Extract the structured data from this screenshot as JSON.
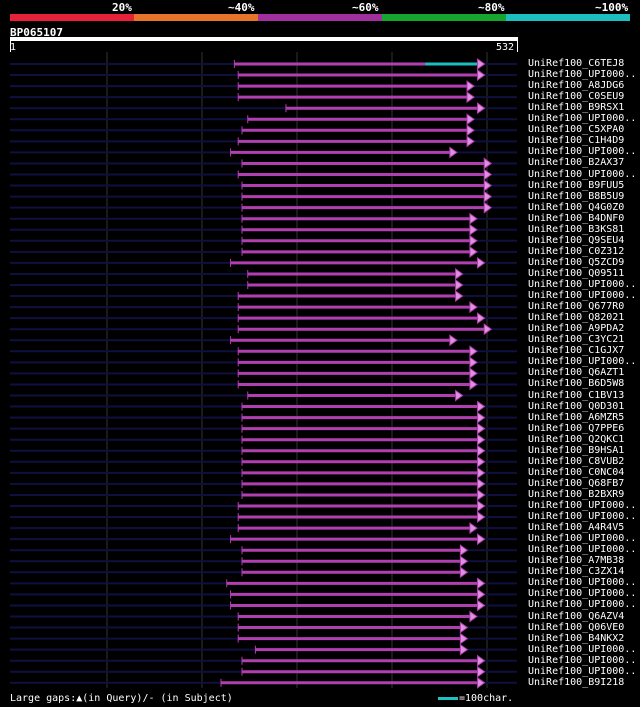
{
  "legend": {
    "labels": [
      "20%",
      "~40%",
      "~60%",
      "~80%",
      "~100%"
    ],
    "colors": [
      "#e8213a",
      "#e8742a",
      "#a0309e",
      "#16a52e",
      "#1cbfc0"
    ]
  },
  "query": {
    "id": "BP065107",
    "start": "1",
    "end": "532",
    "length": 532
  },
  "colors": {
    "hit": "#b23fb2",
    "hit_high": "#1cbfc0",
    "background_line": "#101040",
    "grid": "#333333",
    "gap_marker": "#ffff88"
  },
  "hits": [
    {
      "label": "UniRef100_C6TEJ8",
      "start": 236,
      "end": 498,
      "high": [
        436,
        498
      ]
    },
    {
      "label": "UniRef100_UPI000..",
      "start": 240,
      "end": 498
    },
    {
      "label": "UniRef100_A8JDG6",
      "start": 240,
      "end": 487
    },
    {
      "label": "UniRef100_C0SEU9",
      "start": 240,
      "end": 487
    },
    {
      "label": "UniRef100_B9RSX1",
      "start": 290,
      "end": 498
    },
    {
      "label": "UniRef100_UPI000..",
      "start": 250,
      "end": 487
    },
    {
      "label": "UniRef100_C5XPA0",
      "start": 244,
      "end": 487
    },
    {
      "label": "UniRef100_C1H4D9",
      "start": 240,
      "end": 487
    },
    {
      "label": "UniRef100_UPI000..",
      "start": 232,
      "end": 469
    },
    {
      "label": "UniRef100_B2AX37",
      "start": 244,
      "end": 505
    },
    {
      "label": "UniRef100_UPI000..",
      "start": 240,
      "end": 505
    },
    {
      "label": "UniRef100_B9FUU5",
      "start": 244,
      "end": 505
    },
    {
      "label": "UniRef100_B8B5U9",
      "start": 244,
      "end": 505
    },
    {
      "label": "UniRef100_Q4G0Z0",
      "start": 244,
      "end": 505
    },
    {
      "label": "UniRef100_B4DNF0",
      "start": 244,
      "end": 490
    },
    {
      "label": "UniRef100_B3KS81",
      "start": 244,
      "end": 490
    },
    {
      "label": "UniRef100_Q9SEU4",
      "start": 244,
      "end": 490
    },
    {
      "label": "UniRef100_C0Z312",
      "start": 244,
      "end": 490
    },
    {
      "label": "UniRef100_Q5ZCD9",
      "start": 232,
      "end": 498
    },
    {
      "label": "UniRef100_Q09511",
      "start": 250,
      "end": 475
    },
    {
      "label": "UniRef100_UPI000..",
      "start": 250,
      "end": 475
    },
    {
      "label": "UniRef100_UPI000..",
      "start": 240,
      "end": 475
    },
    {
      "label": "UniRef100_Q677R0",
      "start": 240,
      "end": 490
    },
    {
      "label": "UniRef100_Q82021",
      "start": 240,
      "end": 498
    },
    {
      "label": "UniRef100_A9PDA2",
      "start": 240,
      "end": 505
    },
    {
      "label": "UniRef100_C3YC21",
      "start": 232,
      "end": 469
    },
    {
      "label": "UniRef100_C1GJX7",
      "start": 240,
      "end": 490
    },
    {
      "label": "UniRef100_UPI000..",
      "start": 240,
      "end": 490
    },
    {
      "label": "UniRef100_Q6AZT1",
      "start": 240,
      "end": 490
    },
    {
      "label": "UniRef100_B6D5W8",
      "start": 240,
      "end": 490
    },
    {
      "label": "UniRef100_C1BV13",
      "start": 250,
      "end": 475
    },
    {
      "label": "UniRef100_Q0D301",
      "start": 244,
      "end": 498
    },
    {
      "label": "UniRef100_A6MZR5",
      "start": 244,
      "end": 498
    },
    {
      "label": "UniRef100_Q7PPE6",
      "start": 244,
      "end": 498
    },
    {
      "label": "UniRef100_Q2QKC1",
      "start": 244,
      "end": 498
    },
    {
      "label": "UniRef100_B9HSA1",
      "start": 244,
      "end": 498
    },
    {
      "label": "UniRef100_C8VUB2",
      "start": 244,
      "end": 498
    },
    {
      "label": "UniRef100_C0NC04",
      "start": 244,
      "end": 498
    },
    {
      "label": "UniRef100_Q68FB7",
      "start": 244,
      "end": 498
    },
    {
      "label": "UniRef100_B2BXR9",
      "start": 244,
      "end": 498
    },
    {
      "label": "UniRef100_UPI000..",
      "start": 240,
      "end": 498
    },
    {
      "label": "UniRef100_UPI000..",
      "start": 240,
      "end": 498
    },
    {
      "label": "UniRef100_A4R4V5",
      "start": 240,
      "end": 490
    },
    {
      "label": "UniRef100_UPI000..",
      "start": 232,
      "end": 498
    },
    {
      "label": "UniRef100_UPI000..",
      "start": 244,
      "end": 480
    },
    {
      "label": "UniRef100_A7MB38",
      "start": 244,
      "end": 480
    },
    {
      "label": "UniRef100_C3ZX14",
      "start": 244,
      "end": 480
    },
    {
      "label": "UniRef100_UPI000..",
      "start": 228,
      "end": 498
    },
    {
      "label": "UniRef100_UPI000..",
      "start": 232,
      "end": 498
    },
    {
      "label": "UniRef100_UPI000..",
      "start": 232,
      "end": 498
    },
    {
      "label": "UniRef100_Q6AZV4",
      "start": 240,
      "end": 490
    },
    {
      "label": "UniRef100_Q06VE0",
      "start": 240,
      "end": 480
    },
    {
      "label": "UniRef100_B4NKX2",
      "start": 240,
      "end": 480
    },
    {
      "label": "UniRef100_UPI000..",
      "start": 258,
      "end": 480
    },
    {
      "label": "UniRef100_UPI000..",
      "start": 244,
      "end": 498
    },
    {
      "label": "UniRef100_UPI000..",
      "start": 244,
      "end": 498
    },
    {
      "label": "UniRef100_B9I218",
      "start": 222,
      "end": 498
    }
  ],
  "footer": {
    "gaps_text": "Large gaps:▲(in Query)/- (in Subject)",
    "scale_text": "=100char."
  }
}
